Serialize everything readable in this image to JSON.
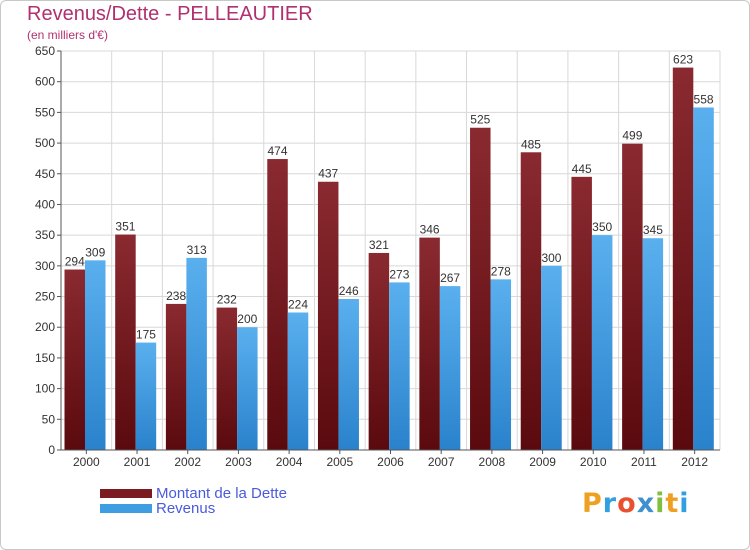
{
  "title": "Revenus/Dette - PELLEAUTIER",
  "subtitle": "(en milliers d'€)",
  "brand": {
    "text": "Proxiti",
    "letters": [
      "P",
      "r",
      "o",
      "x",
      "i",
      "t",
      "i"
    ],
    "colors": [
      "#f0a020",
      "#30a0e0",
      "#e85030",
      "#4090d0",
      "#80c040",
      "#f0a020",
      "#30a0e0"
    ]
  },
  "colors": {
    "dette": "#7a1c22",
    "revenus": "#3f9de2",
    "grid": "#d8d8d8",
    "axis": "#555555"
  },
  "chart_data": {
    "type": "bar",
    "title": "Revenus/Dette - PELLEAUTIER",
    "ylabel": "(en milliers d'€)",
    "xlabel": "",
    "categories": [
      "2000",
      "2001",
      "2002",
      "2003",
      "2004",
      "2005",
      "2006",
      "2007",
      "2008",
      "2009",
      "2010",
      "2011",
      "2012"
    ],
    "series": [
      {
        "name": "Montant de la Dette",
        "values": [
          294,
          351,
          238,
          232,
          474,
          437,
          321,
          346,
          525,
          485,
          445,
          499,
          623
        ]
      },
      {
        "name": "Revenus",
        "values": [
          309,
          175,
          313,
          200,
          224,
          246,
          273,
          267,
          278,
          300,
          350,
          345,
          558
        ]
      }
    ],
    "ylim": [
      0,
      650
    ],
    "yticks": [
      0,
      50,
      100,
      150,
      200,
      250,
      300,
      350,
      400,
      450,
      500,
      550,
      600,
      650
    ],
    "grid": true,
    "legend": "bottom-left"
  }
}
